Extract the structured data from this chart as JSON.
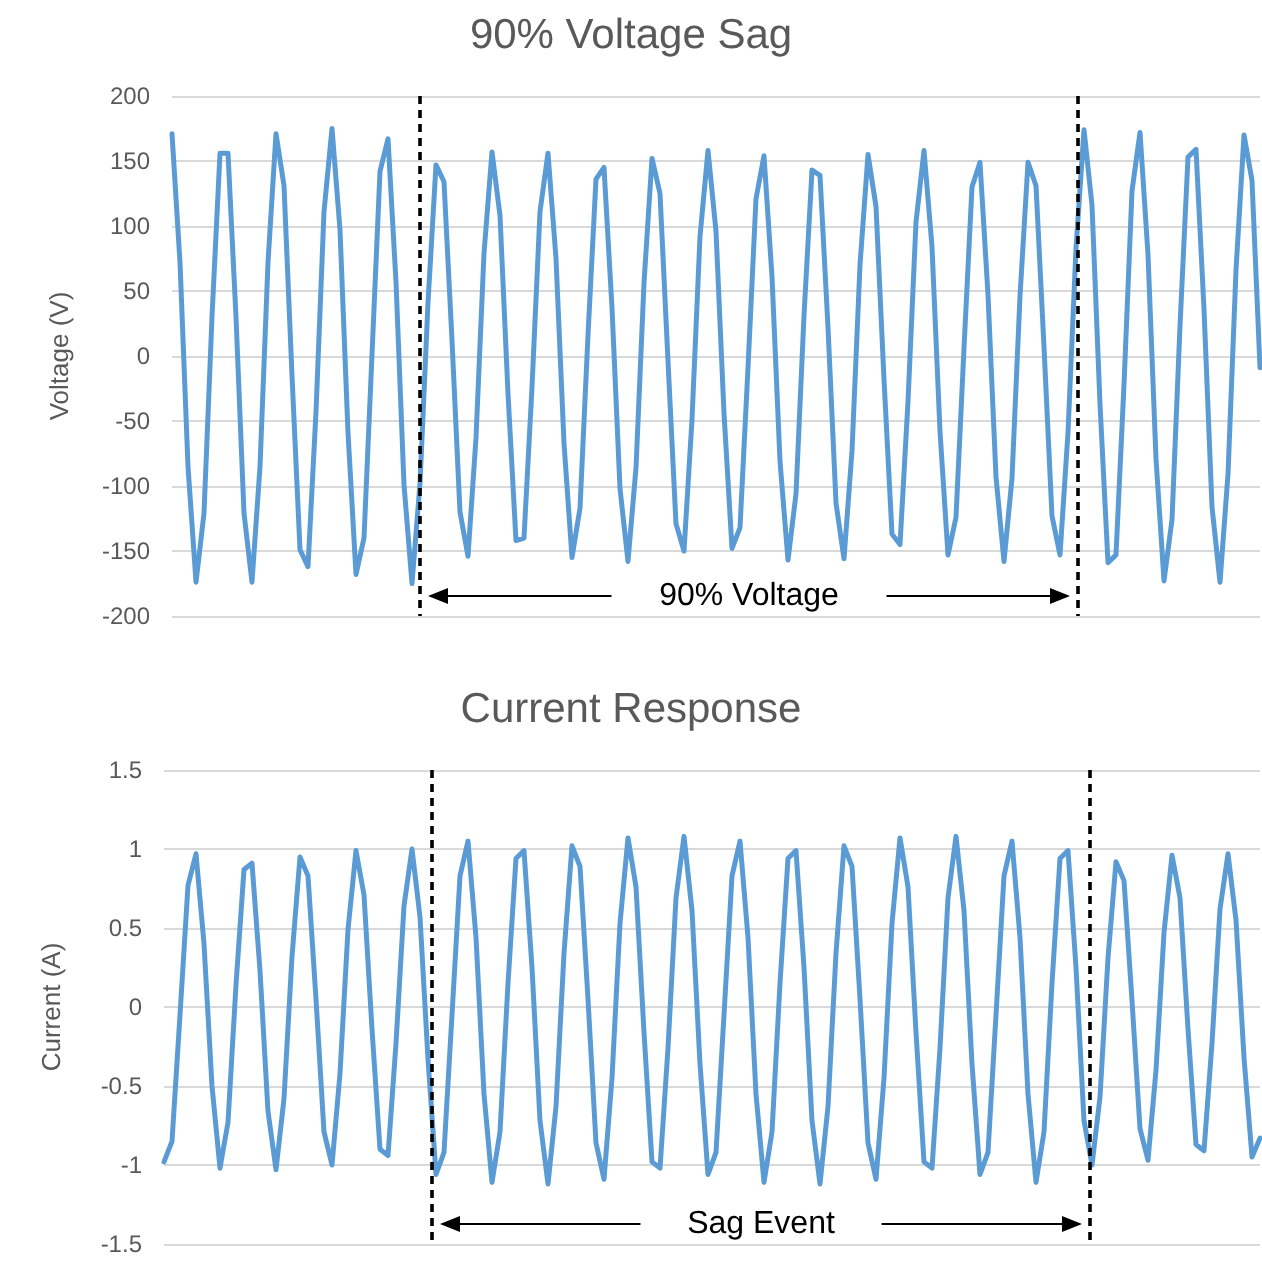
{
  "chart_data": [
    {
      "type": "line",
      "title": "90% Voltage Sag",
      "ylabel": "Voltage (V)",
      "ylim": [
        -200,
        200
      ],
      "yticks": [
        -200,
        -150,
        -100,
        -50,
        0,
        50,
        100,
        150,
        200
      ],
      "grid": "y",
      "tick_labels": "y",
      "categories": [
        null,
        null,
        null,
        null,
        null,
        null,
        null,
        null,
        null,
        null,
        null,
        null,
        null,
        null,
        null,
        null,
        null,
        null,
        null,
        null,
        null,
        null,
        null,
        null,
        null,
        null,
        null,
        null,
        null,
        null,
        null,
        null,
        null,
        null,
        null,
        null,
        null,
        null,
        null,
        null,
        null,
        null,
        null,
        null,
        null,
        null,
        null,
        null,
        null,
        null,
        null,
        null,
        null,
        null,
        null,
        null,
        null,
        null,
        null,
        null,
        null,
        null,
        null,
        null,
        null,
        null,
        null,
        null,
        null,
        null,
        null,
        null,
        null,
        null,
        null,
        null,
        null,
        null,
        null,
        null,
        null,
        null,
        null,
        null,
        null,
        null,
        null,
        null,
        null,
        null,
        null,
        null,
        null,
        null,
        null,
        null,
        null,
        null,
        null,
        null,
        null,
        null,
        null,
        null,
        null,
        null,
        null,
        null,
        null,
        null,
        null,
        null,
        null,
        null,
        null,
        null,
        null,
        null,
        null,
        null,
        null,
        null,
        null,
        null,
        null,
        null,
        null,
        null,
        null,
        null,
        null,
        null,
        null,
        null,
        null,
        null,
        null
      ],
      "series": [
        {
          "color": "#5b9bd5",
          "values": [
            171,
            72,
            -85,
            -174,
            -121,
            30,
            156,
            156,
            30,
            -121,
            -174,
            -85,
            72,
            171,
            131,
            -15,
            -149,
            -162,
            -43,
            111,
            175,
            97,
            -59,
            -168,
            -140,
            1,
            142,
            167,
            57,
            -99,
            -175,
            -98,
            41,
            147,
            134,
            12,
            -120,
            -154,
            -63,
            79,
            157,
            108,
            -29,
            -142,
            -140,
            -24,
            111,
            156,
            75,
            -67,
            -155,
            -117,
            16,
            136,
            145,
            37,
            -102,
            -158,
            -86,
            56,
            152,
            125,
            -4,
            -129,
            -150,
            -49,
            92,
            158,
            96,
            -44,
            -148,
            -132,
            -9,
            121,
            154,
            61,
            -81,
            -157,
            -106,
            31,
            143,
            139,
            22,
            -113,
            -156,
            -73,
            70,
            155,
            115,
            -18,
            -137,
            -145,
            -35,
            103,
            158,
            84,
            -58,
            -153,
            -124,
            6,
            130,
            149,
            47,
            -93,
            -158,
            -94,
            46,
            149,
            131,
            7,
            -123,
            -153,
            -59,
            83,
            174,
            116,
            -37,
            -159,
            -153,
            -22,
            127,
            172,
            78,
            -79,
            -173,
            -126,
            23,
            153,
            159,
            36,
            -116,
            -174,
            -91,
            66,
            170,
            135,
            -9
          ]
        }
      ],
      "annotations": [
        "90% Voltage"
      ]
    },
    {
      "type": "line",
      "title": "Current Response",
      "ylabel": "Current (A)",
      "ylim": [
        -1.5,
        1.5
      ],
      "yticks": [
        -1.5,
        -1,
        -0.5,
        0,
        0.5,
        1,
        1.5
      ],
      "grid": "y",
      "tick_labels": "y",
      "categories": [
        null,
        null,
        null,
        null,
        null,
        null,
        null,
        null,
        null,
        null,
        null,
        null,
        null,
        null,
        null,
        null,
        null,
        null,
        null,
        null,
        null,
        null,
        null,
        null,
        null,
        null,
        null,
        null,
        null,
        null,
        null,
        null,
        null,
        null,
        null,
        null,
        null,
        null,
        null,
        null,
        null,
        null,
        null,
        null,
        null,
        null,
        null,
        null,
        null,
        null,
        null,
        null,
        null,
        null,
        null,
        null,
        null,
        null,
        null,
        null,
        null,
        null,
        null,
        null,
        null,
        null,
        null,
        null,
        null,
        null,
        null,
        null,
        null,
        null,
        null,
        null,
        null,
        null,
        null,
        null,
        null,
        null,
        null,
        null,
        null,
        null,
        null,
        null,
        null,
        null,
        null,
        null,
        null,
        null,
        null,
        null,
        null,
        null,
        null,
        null,
        null,
        null,
        null,
        null,
        null,
        null,
        null,
        null,
        null,
        null,
        null,
        null,
        null,
        null,
        null,
        null,
        null,
        null,
        null,
        null,
        null,
        null,
        null,
        null,
        null,
        null,
        null,
        null,
        null,
        null,
        null,
        null,
        null,
        null,
        null,
        null,
        null,
        null
      ],
      "series": [
        {
          "color": "#5b9bd5",
          "values": [
            -0.98,
            -0.85,
            -0.05,
            0.77,
            0.97,
            0.4,
            -0.5,
            -1.02,
            -0.73,
            0.14,
            0.87,
            0.91,
            0.23,
            -0.66,
            -1.03,
            -0.58,
            0.32,
            0.95,
            0.83,
            0.05,
            -0.79,
            -1.0,
            -0.42,
            0.49,
            0.99,
            0.71,
            -0.14,
            -0.9,
            -0.94,
            -0.23,
            0.64,
            1.0,
            0.57,
            -0.33,
            -1.06,
            -0.92,
            -0.05,
            0.83,
            1.05,
            0.44,
            -0.55,
            -1.11,
            -0.79,
            0.15,
            0.94,
            0.99,
            0.25,
            -0.72,
            -1.12,
            -0.63,
            0.34,
            1.02,
            0.89,
            0.05,
            -0.86,
            -1.09,
            -0.45,
            0.53,
            1.07,
            0.76,
            -0.16,
            -0.98,
            -1.02,
            -0.26,
            0.69,
            1.08,
            0.61,
            -0.36,
            -1.06,
            -0.92,
            -0.05,
            0.83,
            1.05,
            0.44,
            -0.55,
            -1.11,
            -0.79,
            0.15,
            0.94,
            0.99,
            0.25,
            -0.72,
            -1.12,
            -0.63,
            0.34,
            1.02,
            0.89,
            0.05,
            -0.86,
            -1.09,
            -0.45,
            0.53,
            1.07,
            0.76,
            -0.16,
            -0.98,
            -1.02,
            -0.26,
            0.69,
            1.08,
            0.61,
            -0.36,
            -1.06,
            -0.92,
            -0.05,
            0.83,
            1.05,
            0.44,
            -0.55,
            -1.11,
            -0.79,
            0.15,
            0.94,
            0.99,
            0.25,
            -0.72,
            -1.0,
            -0.57,
            0.31,
            0.92,
            0.8,
            0.04,
            -0.77,
            -0.97,
            -0.4,
            0.47,
            0.96,
            0.69,
            -0.14,
            -0.87,
            -0.91,
            -0.23,
            0.62,
            0.97,
            0.55,
            -0.32,
            -0.95,
            -0.83
          ]
        }
      ],
      "annotations": [
        "Sag Event"
      ]
    }
  ]
}
